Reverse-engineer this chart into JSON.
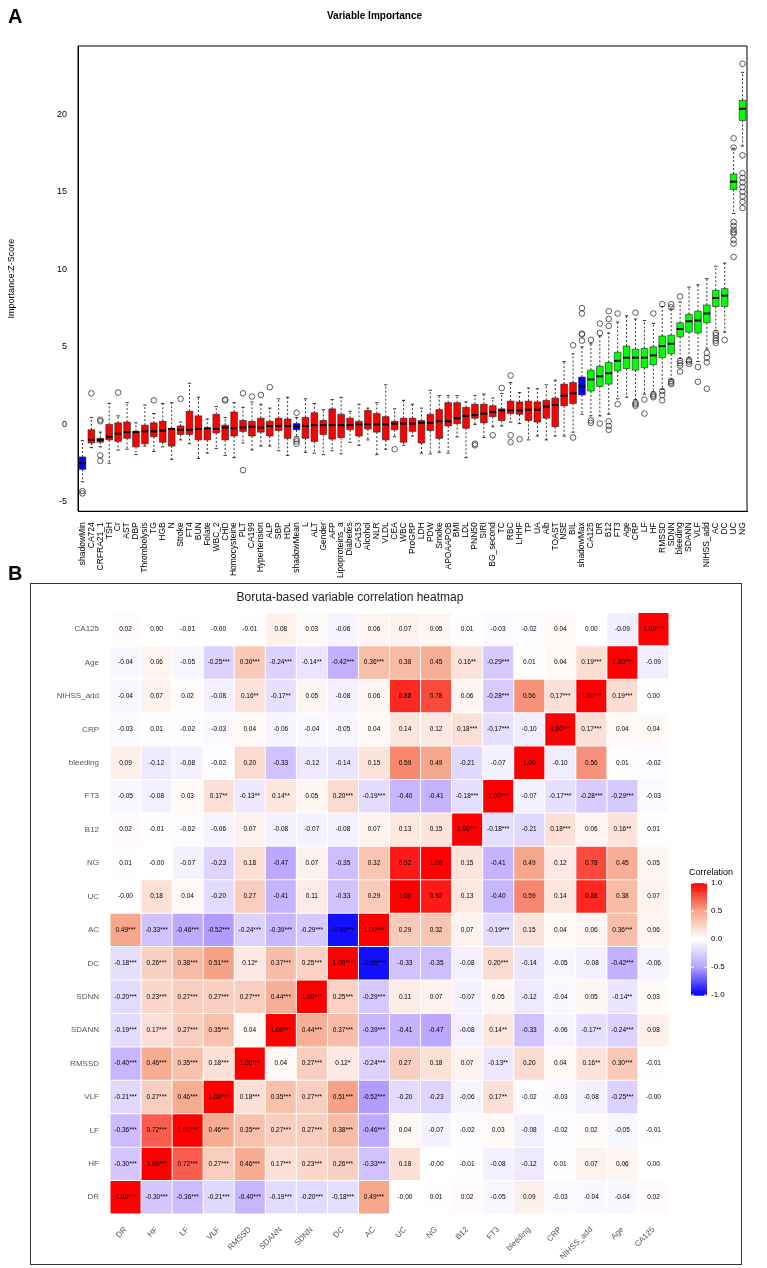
{
  "chart_data": [
    {
      "type": "box",
      "title": "Variable Importance",
      "ylabel": "Importance:Z-Score",
      "annotations": [
        "A"
      ],
      "categories": [
        "shadowMin",
        "CA724",
        "CRFRA21_1",
        "TSH",
        "Cr",
        "AST",
        "DBP",
        "Thrombolysis",
        "TG",
        "HGB",
        "N",
        "Stroke",
        "FT4",
        "BUN",
        "Folate",
        "WBC_2",
        "CHD",
        "Homocysteine",
        "PLT",
        "CA199",
        "Hypertension",
        "ALP",
        "SBP",
        "HDL",
        "shadowMean",
        "L",
        "ALT",
        "Gender",
        "AFP",
        "Lipoproteins_a",
        "Diabetes",
        "CA153",
        "Alcohol",
        "NLR",
        "VLDL",
        "CEA",
        "WBC",
        "ProGRP",
        "LDH",
        "PDW",
        "Smoke",
        "APOAAPOB",
        "BMI",
        "LDL",
        "PNN50",
        "SIRI",
        "BG_second",
        "TC",
        "RBC",
        "LHHF",
        "TP",
        "UA",
        "Alb",
        "TOAST",
        "NSE",
        "BIL",
        "shadowMax",
        "CA125",
        "DR",
        "B12",
        "FT3",
        "Age",
        "CRP",
        "LF",
        "HF",
        "RMSSD",
        "SDNN",
        "bleeding",
        "SDANN",
        "VLF",
        "NIHSS_add",
        "AC",
        "DC",
        "UC",
        "NG"
      ],
      "colors": [
        "#0000ff",
        "#ff0000",
        "#ff0000",
        "#ff0000",
        "#ff0000",
        "#ff0000",
        "#ff0000",
        "#ff0000",
        "#ff0000",
        "#ff0000",
        "#ff0000",
        "#ff0000",
        "#ff0000",
        "#ff0000",
        "#ff0000",
        "#ff0000",
        "#ff0000",
        "#ff0000",
        "#ff0000",
        "#ff0000",
        "#ff0000",
        "#ff0000",
        "#ff0000",
        "#ff0000",
        "#0000ff",
        "#ff0000",
        "#ff0000",
        "#ff0000",
        "#ff0000",
        "#ff0000",
        "#ff0000",
        "#ff0000",
        "#ff0000",
        "#ff0000",
        "#ff0000",
        "#ff0000",
        "#ff0000",
        "#ff0000",
        "#ff0000",
        "#ff0000",
        "#ff0000",
        "#ff0000",
        "#ff0000",
        "#ff0000",
        "#ff0000",
        "#ff0000",
        "#ff0000",
        "#ff0000",
        "#ff0000",
        "#ff0000",
        "#ff0000",
        "#ff0000",
        "#ff0000",
        "#ff0000",
        "#ff0000",
        "#ff0000",
        "#0000ff",
        "#00ff00",
        "#00ff00",
        "#00ff00",
        "#00ff00",
        "#00ff00",
        "#00ff00",
        "#00ff00",
        "#00ff00",
        "#00ff00",
        "#00ff00",
        "#00ff00",
        "#00ff00",
        "#00ff00",
        "#00ff00",
        "#00ff00",
        "#00ff00",
        "#00ff00",
        "#00ff00"
      ],
      "ylim": [
        -5.6,
        24.4
      ],
      "yticks": [
        -5,
        0,
        5,
        10,
        15,
        20
      ],
      "boxes": [
        {
          "low": -3.7,
          "q1": -2.9,
          "median": -2.5,
          "q3": -2.1,
          "high": -1.05,
          "outliers": [
            -4.3,
            -4.45
          ]
        },
        {
          "low": -1.5,
          "q1": -1.2,
          "median": -1.0,
          "q3": -0.35,
          "high": 0.45,
          "outliers": [
            2.0
          ]
        },
        {
          "low": -1.45,
          "q1": -1.15,
          "median": -1.0,
          "q3": -0.9,
          "high": -0.5,
          "outliers": [
            0.3,
            0.2,
            -2.0,
            -2.35
          ]
        },
        {
          "low": -2.5,
          "q1": -1.0,
          "median": -0.8,
          "q3": 0,
          "high": 1.35
        },
        {
          "low": -1.65,
          "q1": -1.1,
          "median": -0.6,
          "q3": 0.1,
          "high": 0.55,
          "outliers": [
            2.05
          ]
        },
        {
          "low": -1.6,
          "q1": -0.9,
          "median": -0.5,
          "q3": 0.15,
          "high": 1.4
        },
        {
          "low": -1.95,
          "q1": -1.45,
          "median": -0.5,
          "q3": -0.45,
          "high": 0.1
        },
        {
          "low": -1.4,
          "q1": -1.25,
          "median": -0.45,
          "q3": -0.05,
          "high": 1.25
        },
        {
          "low": -1.75,
          "q1": -0.8,
          "median": -0.45,
          "q3": 0.1,
          "high": 0.7,
          "outliers": [
            1.55
          ]
        },
        {
          "low": -1.45,
          "q1": -1.15,
          "median": -0.4,
          "q3": 0.2,
          "high": 1.35
        },
        {
          "low": -2.25,
          "q1": -1.4,
          "median": -0.3,
          "q3": -0.25,
          "high": 1.4
        },
        {
          "low": -1.0,
          "q1": -0.65,
          "median": -0.35,
          "q3": -0.1,
          "high": 0.15,
          "outliers": [
            1.65
          ]
        },
        {
          "low": -1.25,
          "q1": -0.65,
          "median": -0.35,
          "q3": 0.85,
          "high": 2.65
        },
        {
          "low": -2.2,
          "q1": -1.0,
          "median": -0.3,
          "q3": 0.55,
          "high": 1.75
        },
        {
          "low": -1.85,
          "q1": -1.0,
          "median": -0.25,
          "q3": -0.25,
          "high": 0.35
        },
        {
          "low": -1.55,
          "q1": -0.55,
          "median": -0.3,
          "q3": 0.65,
          "high": 1.15
        },
        {
          "low": -2.0,
          "q1": -1.0,
          "median": -0.2,
          "q3": -0.05,
          "high": 0.45,
          "outliers": [
            1.6,
            1.55
          ]
        },
        {
          "low": -2.15,
          "q1": -0.75,
          "median": -0.25,
          "q3": 0.8,
          "high": 1.4
        },
        {
          "low": -1.2,
          "q1": -0.45,
          "median": -0.2,
          "q3": 0.25,
          "high": 1.1,
          "outliers": [
            2.0,
            -2.95
          ]
        },
        {
          "low": -1.65,
          "q1": -0.75,
          "median": -0.15,
          "q3": 0.2,
          "high": 1.45,
          "outliers": [
            1.8
          ]
        },
        {
          "low": -1.4,
          "q1": -0.5,
          "median": -0.2,
          "q3": 0.4,
          "high": 1.3,
          "outliers": [
            1.9
          ]
        },
        {
          "low": -1.4,
          "q1": -0.75,
          "median": -0.1,
          "q3": 0.2,
          "high": 1.05,
          "outliers": [
            2.4
          ]
        },
        {
          "low": -1.7,
          "q1": -0.4,
          "median": -0.1,
          "q3": 0.4,
          "high": 1.65
        },
        {
          "low": -2.0,
          "q1": -0.9,
          "median": -0.1,
          "q3": 0.35,
          "high": 1.75
        },
        {
          "low": -0.8,
          "q1": -0.35,
          "median": -0.15,
          "q3": 0.05,
          "high": 0.45,
          "outliers": [
            0.75,
            -0.95,
            -1.1,
            -1.25
          ]
        },
        {
          "low": -1.8,
          "q1": -0.9,
          "median": -0.1,
          "q3": 0.45,
          "high": 1.65
        },
        {
          "low": -1.85,
          "q1": -1.1,
          "median": -0.05,
          "q3": 0.75,
          "high": 1.35
        },
        {
          "low": -1.95,
          "q1": -0.65,
          "median": -0.05,
          "q3": 0.25,
          "high": 0.95
        },
        {
          "low": -1.7,
          "q1": -0.95,
          "median": -0.05,
          "q3": 1.0,
          "high": 1.6
        },
        {
          "low": -1.9,
          "q1": -0.85,
          "median": -0.05,
          "q3": 0.65,
          "high": 1.75
        },
        {
          "low": -1.15,
          "q1": -0.35,
          "median": -0.05,
          "q3": 0.4,
          "high": 0.85
        },
        {
          "low": -1.35,
          "q1": -0.75,
          "median": 0,
          "q3": 0.2,
          "high": 1.3
        },
        {
          "low": -1.0,
          "q1": -0.3,
          "median": 0,
          "q3": 0.9,
          "high": 1.05
        },
        {
          "low": -1.95,
          "q1": -0.5,
          "median": 0,
          "q3": 0.7,
          "high": 1.4
        },
        {
          "low": -1.6,
          "q1": -1.0,
          "median": 0,
          "q3": 0.5,
          "high": 2.55
        },
        {
          "low": -0.8,
          "q1": -0.35,
          "median": 0.05,
          "q3": 0.2,
          "high": 1.0,
          "outliers": [
            -1.6
          ]
        },
        {
          "low": -1.35,
          "q1": -1.15,
          "median": 0.05,
          "q3": 0.4,
          "high": 1.55
        },
        {
          "low": -0.75,
          "q1": -0.45,
          "median": 0.05,
          "q3": 0.4,
          "high": 1.3
        },
        {
          "low": -1.85,
          "q1": -1.2,
          "median": 0.1,
          "q3": 0.25,
          "high": 1.05
        },
        {
          "low": -1.9,
          "q1": -0.4,
          "median": 0.1,
          "q3": 0.65,
          "high": 2.2
        },
        {
          "low": -1.8,
          "q1": -0.9,
          "median": 0.2,
          "q3": 0.95,
          "high": 1.85
        },
        {
          "low": -1.85,
          "q1": -0.1,
          "median": 0.2,
          "q3": 1.4,
          "high": 1.85
        },
        {
          "low": -0.8,
          "q1": 0.05,
          "median": 0.4,
          "q3": 1.4,
          "high": 1.85
        },
        {
          "low": -2.15,
          "q1": -0.25,
          "median": 0.55,
          "q3": 1.1,
          "high": 1.45
        },
        {
          "low": 0,
          "q1": 0.4,
          "median": 0.6,
          "q3": 1.3,
          "high": 1.85,
          "outliers": [
            -1.25,
            -1.35
          ]
        },
        {
          "low": -0.85,
          "q1": 0.1,
          "median": 0.7,
          "q3": 1.3,
          "high": 1.95
        },
        {
          "low": -0.15,
          "q1": 0.5,
          "median": 0.8,
          "q3": 1.2,
          "high": 1.7,
          "outliers": [
            -0.7
          ]
        },
        {
          "low": -0.1,
          "q1": 0.25,
          "median": 0.9,
          "q3": 1.0,
          "high": 2.0,
          "outliers": [
            2.35
          ]
        },
        {
          "low": 0.15,
          "q1": 0.7,
          "median": 0.9,
          "q3": 1.5,
          "high": 2.7,
          "outliers": [
            3.15,
            -0.7,
            -1.15
          ]
        },
        {
          "low": 0.05,
          "q1": 0.65,
          "median": 0.9,
          "q3": 1.45,
          "high": 2.05,
          "outliers": [
            -0.95
          ]
        },
        {
          "low": -1.0,
          "q1": 0.25,
          "median": 0.95,
          "q3": 1.5,
          "high": 2.35
        },
        {
          "low": -0.75,
          "q1": 0.15,
          "median": 0.95,
          "q3": 1.45,
          "high": 2.3
        },
        {
          "low": -1.0,
          "q1": 0.4,
          "median": 1.15,
          "q3": 1.55,
          "high": 2.55
        },
        {
          "low": -0.75,
          "q1": -0.15,
          "median": 1.25,
          "q3": 1.7,
          "high": 2.85
        },
        {
          "low": -0.75,
          "q1": 1.2,
          "median": 1.85,
          "q3": 2.6,
          "high": 4.05
        },
        {
          "low": -0.5,
          "q1": 1.35,
          "median": 2.0,
          "q3": 2.7,
          "high": 4.55,
          "outliers": [
            5.1,
            -0.85
          ]
        },
        {
          "low": 0.65,
          "q1": 1.9,
          "median": 2.45,
          "q3": 3.05,
          "high": 5.0,
          "outliers": [
            5.4,
            5.8,
            5.85,
            7.15,
            7.5
          ]
        },
        {
          "low": 0.55,
          "q1": 2.15,
          "median": 2.9,
          "q3": 3.5,
          "high": 5.2,
          "outliers": [
            5.45,
            0.25,
            0.1
          ]
        },
        {
          "low": 0.55,
          "q1": 2.45,
          "median": 3.1,
          "q3": 3.75,
          "high": 5.7,
          "outliers": [
            6.5,
            5.9,
            0.05
          ]
        },
        {
          "low": 0.65,
          "q1": 2.6,
          "median": 3.3,
          "q3": 4.0,
          "high": 5.9,
          "outliers": [
            7.3,
            6.8,
            6.35,
            0.2,
            -0.1,
            -0.35
          ]
        },
        {
          "low": 1.65,
          "q1": 3.45,
          "median": 4.1,
          "q3": 4.65,
          "high": 6.6,
          "outliers": [
            7.15,
            1.3
          ]
        },
        {
          "low": 1.75,
          "q1": 3.6,
          "median": 4.3,
          "q3": 5.05,
          "high": 7.0
        },
        {
          "low": 1.6,
          "q1": 3.5,
          "median": 4.3,
          "q3": 4.85,
          "high": 6.8,
          "outliers": [
            7.2,
            1.4,
            1.3,
            1.2
          ]
        },
        {
          "low": 1.95,
          "q1": 3.65,
          "median": 4.3,
          "q3": 4.9,
          "high": 6.7,
          "outliers": [
            1.6,
            0.7
          ]
        },
        {
          "low": 2.1,
          "q1": 3.85,
          "median": 4.45,
          "q3": 5.0,
          "high": 6.5,
          "outliers": [
            7.15,
            1.95,
            1.85,
            1.75
          ]
        },
        {
          "low": 2.25,
          "q1": 4.3,
          "median": 5.05,
          "q3": 5.7,
          "high": 7.6,
          "outliers": [
            7.75,
            2.15,
            1.9,
            1.55
          ]
        },
        {
          "low": 2.9,
          "q1": 4.55,
          "median": 5.2,
          "q3": 5.75,
          "high": 7.45,
          "outliers": [
            7.75,
            7.55,
            2.8,
            2.7,
            2.6
          ]
        },
        {
          "low": 4.25,
          "q1": 5.65,
          "median": 6.15,
          "q3": 6.55,
          "high": 7.9,
          "outliers": [
            8.25,
            4.1,
            3.95,
            3.8,
            3.4
          ]
        },
        {
          "low": 4.3,
          "q1": 5.95,
          "median": 6.65,
          "q3": 7.1,
          "high": 8.85,
          "outliers": [
            4.15,
            4.05,
            3.9
          ]
        },
        {
          "low": 4.05,
          "q1": 5.9,
          "median": 6.7,
          "q3": 7.3,
          "high": 9.0,
          "outliers": [
            3.7,
            2.75
          ]
        },
        {
          "low": 4.85,
          "q1": 6.55,
          "median": 7.15,
          "q3": 7.7,
          "high": 9.4,
          "outliers": [
            4.6,
            4.3,
            4.0,
            2.3
          ]
        },
        {
          "low": 6.05,
          "q1": 7.6,
          "median": 8.15,
          "q3": 8.65,
          "high": 10.2,
          "outliers": [
            5.9,
            5.75,
            5.55,
            5.4,
            5.25
          ]
        },
        {
          "low": 5.95,
          "q1": 7.6,
          "median": 8.3,
          "q3": 8.75,
          "high": 10.4,
          "outliers": [
            5.45
          ]
        },
        {
          "low": 13.6,
          "q1": 15.15,
          "median": 15.65,
          "q3": 16.15,
          "high": 17.8,
          "outliers": [
            18.45,
            17.85,
            13.05,
            12.8,
            12.55,
            12.4,
            12.3,
            11.9,
            11.65,
            10.8
          ]
        },
        {
          "low": 17.95,
          "q1": 19.6,
          "median": 20.35,
          "q3": 20.9,
          "high": 22.7,
          "outliers": [
            23.25,
            17.35,
            16.2,
            15.9,
            15.6,
            15.3,
            15.0,
            14.7,
            14.35,
            13.95
          ]
        }
      ]
    },
    {
      "type": "heatmap",
      "title": "Boruta-based variable correlation heatmap",
      "clabel": "Correlation",
      "annotations": [
        "B"
      ],
      "categories": [
        "DR",
        "HF",
        "LF",
        "VLF",
        "RMSSD",
        "SDANN",
        "SDNN",
        "DC",
        "AC",
        "UC",
        "NG",
        "B12",
        "FT3",
        "bleeding",
        "CRP",
        "NIHSS_add",
        "Age",
        "CA125"
      ],
      "y_categories": [
        "CA125",
        "Age",
        "NIHSS_add",
        "CRP",
        "bleeding",
        "FT3",
        "B12",
        "NG",
        "UC",
        "AC",
        "DC",
        "SDNN",
        "SDANN",
        "RMSSD",
        "VLF",
        "LF",
        "HF",
        "DR"
      ],
      "clim": [
        -1,
        1
      ],
      "cticks": [
        {
          "value": 1,
          "label": "1.0"
        },
        {
          "value": 0.5,
          "label": "0.5"
        },
        {
          "value": 0,
          "label": "0.0"
        },
        {
          "value": -0.5,
          "label": "-0.5"
        },
        {
          "value": -1,
          "label": "-1.0"
        }
      ],
      "cells": [
        [
          0.02,
          0.0,
          -0.01,
          -0.0,
          -0.01,
          0.08,
          0.03,
          -0.06,
          0.06,
          0.07,
          0.05,
          0.01,
          -0.03,
          -0.02,
          0.04,
          0.0,
          -0.09,
          1.0
        ],
        [
          -0.04,
          0.06,
          -0.05,
          -0.25,
          0.3,
          -0.24,
          -0.14,
          -0.42,
          0.36,
          0.38,
          0.45,
          0.16,
          -0.29,
          0.01,
          0.04,
          0.19,
          1.0,
          -0.09
        ],
        [
          -0.04,
          0.07,
          0.02,
          -0.08,
          0.16,
          -0.17,
          0.05,
          -0.08,
          0.06,
          0.88,
          0.78,
          0.06,
          -0.28,
          0.56,
          0.17,
          1.0,
          0.19,
          0.0
        ],
        [
          -0.03,
          0.01,
          -0.02,
          -0.03,
          0.04,
          -0.06,
          -0.04,
          -0.05,
          0.04,
          0.14,
          0.12,
          0.18,
          -0.17,
          -0.1,
          1.0,
          0.17,
          0.04,
          0.04
        ],
        [
          0.09,
          -0.12,
          -0.08,
          -0.02,
          0.2,
          -0.33,
          -0.12,
          -0.14,
          0.15,
          0.59,
          0.49,
          -0.21,
          -0.07,
          1.0,
          -0.1,
          0.56,
          0.01,
          -0.02
        ],
        [
          -0.05,
          -0.08,
          0.03,
          0.17,
          -0.13,
          0.14,
          0.05,
          0.2,
          -0.19,
          -0.4,
          -0.41,
          -0.18,
          1.0,
          -0.07,
          -0.17,
          -0.28,
          -0.29,
          -0.03
        ],
        [
          0.02,
          -0.01,
          -0.02,
          -0.06,
          0.07,
          -0.08,
          -0.07,
          -0.08,
          0.07,
          0.13,
          0.15,
          1.0,
          -0.18,
          -0.21,
          0.18,
          0.06,
          0.16,
          0.01
        ],
        [
          0.01,
          -0.0,
          -0.07,
          -0.23,
          0.18,
          -0.47,
          0.07,
          -0.35,
          0.32,
          0.92,
          1.0,
          0.15,
          -0.41,
          0.49,
          0.12,
          0.78,
          0.45,
          0.05
        ],
        [
          -0.0,
          0.18,
          0.04,
          -0.2,
          0.27,
          -0.41,
          0.11,
          -0.33,
          0.29,
          1.0,
          0.92,
          0.13,
          -0.4,
          0.59,
          0.14,
          0.88,
          0.38,
          0.07
        ],
        [
          0.49,
          -0.33,
          -0.46,
          -0.52,
          -0.24,
          -0.39,
          -0.29,
          -0.95,
          1.0,
          0.29,
          0.32,
          0.07,
          -0.19,
          0.15,
          0.04,
          0.06,
          0.36,
          0.06
        ],
        [
          -0.18,
          0.26,
          0.38,
          0.51,
          0.12,
          0.37,
          0.25,
          1.0,
          -0.95,
          -0.33,
          -0.35,
          -0.08,
          0.2,
          -0.14,
          -0.05,
          -0.08,
          -0.42,
          -0.06
        ],
        [
          -0.2,
          0.23,
          0.27,
          0.27,
          0.27,
          0.44,
          1.0,
          0.25,
          -0.29,
          0.11,
          0.07,
          -0.07,
          0.05,
          -0.12,
          -0.04,
          0.05,
          -0.14,
          0.03
        ],
        [
          -0.19,
          0.17,
          0.27,
          0.35,
          0.04,
          1.0,
          0.44,
          0.37,
          -0.39,
          -0.41,
          -0.47,
          -0.08,
          0.14,
          -0.33,
          -0.06,
          -0.17,
          -0.24,
          0.08
        ],
        [
          -0.4,
          0.46,
          0.35,
          0.18,
          1.0,
          0.04,
          0.27,
          0.12,
          -0.24,
          0.27,
          0.18,
          0.07,
          -0.13,
          0.2,
          0.04,
          0.16,
          0.3,
          -0.01
        ],
        [
          -0.21,
          0.27,
          0.46,
          1.0,
          0.18,
          0.35,
          0.27,
          0.51,
          -0.52,
          -0.2,
          -0.23,
          -0.06,
          0.17,
          -0.02,
          -0.03,
          -0.08,
          -0.25,
          -0.0
        ],
        [
          -0.36,
          0.72,
          1.0,
          0.46,
          0.35,
          0.27,
          0.27,
          0.38,
          -0.46,
          0.04,
          -0.07,
          -0.02,
          0.03,
          -0.08,
          -0.02,
          0.02,
          -0.05,
          -0.01
        ],
        [
          -0.3,
          1.0,
          0.72,
          0.27,
          0.46,
          0.17,
          0.23,
          0.26,
          -0.33,
          0.18,
          -0.0,
          -0.01,
          -0.08,
          -0.12,
          0.01,
          0.07,
          0.06,
          0.0
        ],
        [
          1.0,
          -0.3,
          -0.36,
          -0.21,
          -0.4,
          -0.19,
          -0.2,
          -0.18,
          0.49,
          -0.0,
          0.01,
          0.02,
          -0.05,
          0.09,
          -0.03,
          -0.04,
          -0.04,
          0.02
        ]
      ],
      "cell_labels": [
        [
          "0.02",
          "0.00",
          "-0.01",
          "-0.00",
          "-0.01",
          "0.08",
          "0.03",
          "-0.06",
          "0.06",
          "0.07",
          "0.05",
          "0.01",
          "-0.03",
          "-0.02",
          "0.04",
          "0.00",
          "-0.09",
          "1.00***"
        ],
        [
          "-0.04",
          "0.06",
          "-0.05",
          "-0.25***",
          "0.30***",
          "-0.24***",
          "-0.14**",
          "-0.42***",
          "0.36***",
          "0.38",
          "0.45",
          "0.16**",
          "-0.29***",
          "0.01",
          "0.04",
          "0.19***",
          "1.00***",
          "-0.09"
        ],
        [
          "-0.04",
          "0.07",
          "0.02",
          "-0.08",
          "0.16**",
          "-0.17**",
          "0.05",
          "-0.08",
          "0.06",
          "0.88",
          "0.78",
          "0.06",
          "-0.28***",
          "0.56",
          "0.17***",
          "1.00***",
          "0.19***",
          "0.00"
        ],
        [
          "-0.03",
          "0.01",
          "-0.02",
          "-0.03",
          "0.04",
          "-0.06",
          "-0.04",
          "-0.05",
          "0.04",
          "0.14",
          "0.12",
          "0.18***",
          "-0.17***",
          "-0.10",
          "1.00***",
          "0.17***",
          "0.04",
          "0.04"
        ],
        [
          "0.09",
          "-0.12",
          "-0.08",
          "-0.02",
          "0.20",
          "-0.33",
          "-0.12",
          "-0.14",
          "0.15",
          "0.59",
          "0.49",
          "-0.21",
          "-0.07",
          "1.00",
          "-0.10",
          "0.56",
          "0.01",
          "-0.02"
        ],
        [
          "-0.05",
          "-0.08",
          "0.03",
          "0.17**",
          "-0.13**",
          "0.14**",
          "0.05",
          "0.20***",
          "-0.19***",
          "-0.40",
          "-0.41",
          "-0.18***",
          "1.00***",
          "-0.07",
          "-0.17***",
          "-0.28***",
          "-0.29***",
          "-0.03"
        ],
        [
          "0.02",
          "-0.01",
          "-0.02",
          "-0.06",
          "0.07",
          "-0.08",
          "-0.07",
          "-0.08",
          "0.07",
          "0.13",
          "0.15",
          "1.00***",
          "-0.18***",
          "-0.21",
          "0.18***",
          "0.06",
          "0.16**",
          "0.01"
        ],
        [
          "0.01",
          "-0.00",
          "-0.07",
          "-0.23",
          "0.18",
          "-0.47",
          "0.07",
          "-0.35",
          "0.32",
          "0.92",
          "1.00",
          "0.15",
          "-0.41",
          "0.49",
          "0.12",
          "0.78",
          "0.45",
          "0.05"
        ],
        [
          "-0.00",
          "0.18",
          "0.04",
          "-0.20",
          "0.27",
          "-0.41",
          "0.11",
          "-0.33",
          "0.29",
          "1.00",
          "0.92",
          "0.13",
          "-0.40",
          "0.59",
          "0.14",
          "0.88",
          "0.38",
          "0.07"
        ],
        [
          "0.49***",
          "-0.33***",
          "-0.46***",
          "-0.52***",
          "-0.24***",
          "-0.39***",
          "-0.29***",
          "-0.95***",
          "1.00***",
          "0.29",
          "0.32",
          "0.07",
          "-0.19***",
          "0.15",
          "0.04",
          "0.06",
          "0.36***",
          "0.06"
        ],
        [
          "-0.18***",
          "0.26***",
          "0.38***",
          "0.51***",
          "0.12*",
          "0.37***",
          "0.25***",
          "1.00***",
          "-0.95***",
          "-0.33",
          "-0.35",
          "-0.08",
          "0.20***",
          "-0.14",
          "-0.05",
          "-0.08",
          "-0.42***",
          "-0.06"
        ],
        [
          "-0.20***",
          "0.23***",
          "0.27***",
          "0.27***",
          "0.27***",
          "0.44***",
          "1.00***",
          "0.25***",
          "-0.29***",
          "0.11",
          "0.07",
          "-0.07",
          "0.05",
          "-0.12",
          "-0.04",
          "0.05",
          "-0.14**",
          "0.03"
        ],
        [
          "-0.19***",
          "0.17***",
          "0.27***",
          "0.35***",
          "0.04",
          "1.00***",
          "0.44***",
          "0.37***",
          "-0.39***",
          "-0.41",
          "-0.47",
          "-0.08",
          "0.14**",
          "-0.33",
          "-0.06",
          "-0.17**",
          "-0.24***",
          "0.08"
        ],
        [
          "-0.40***",
          "0.46***",
          "0.35***",
          "0.18***",
          "1.00***",
          "0.04",
          "0.27***",
          "0.12*",
          "-0.24***",
          "0.27",
          "0.18",
          "0.07",
          "-0.13**",
          "0.20",
          "0.04",
          "0.16**",
          "0.30***",
          "-0.01"
        ],
        [
          "-0.21***",
          "0.27***",
          "0.46***",
          "1.00***",
          "0.18***",
          "0.35***",
          "0.27***",
          "0.51***",
          "-0.52***",
          "-0.20",
          "-0.23",
          "-0.06",
          "0.17**",
          "-0.02",
          "-0.03",
          "-0.08",
          "-0.25***",
          "-0.00"
        ],
        [
          "-0.36***",
          "0.72***",
          "1.00***",
          "0.46***",
          "0.35***",
          "0.27***",
          "0.27***",
          "0.38***",
          "-0.46***",
          "0.04",
          "-0.07",
          "-0.02",
          "0.03",
          "-0.08",
          "-0.02",
          "0.02",
          "-0.05",
          "-0.01"
        ],
        [
          "-0.30***",
          "1.00***",
          "0.72***",
          "0.27***",
          "0.46***",
          "0.17***",
          "0.23***",
          "0.26***",
          "-0.33***",
          "0.18",
          "-0.00",
          "-0.01",
          "-0.08",
          "-0.12",
          "0.01",
          "0.07",
          "0.06",
          "0.00"
        ],
        [
          "1.00***",
          "-0.30***",
          "-0.36***",
          "-0.21***",
          "-0.40***",
          "-0.19***",
          "-0.20***",
          "-0.18***",
          "0.49***",
          "-0.00",
          "0.01",
          "0.02",
          "-0.05",
          "0.09",
          "-0.03",
          "-0.04",
          "-0.04",
          "0.02"
        ]
      ]
    }
  ]
}
